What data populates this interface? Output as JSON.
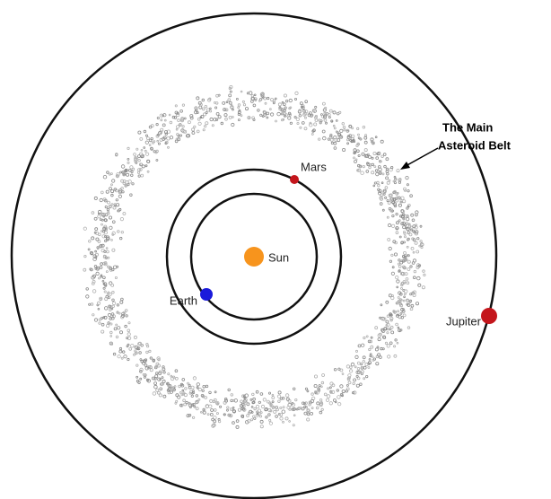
{
  "bodies": [
    {
      "label": "Sun"
    },
    {
      "label": "Earth"
    },
    {
      "label": "Mars"
    },
    {
      "label": "Jupiter"
    }
  ],
  "annotation": {
    "lines": [
      "The Main",
      "Asteroid Belt"
    ]
  }
}
